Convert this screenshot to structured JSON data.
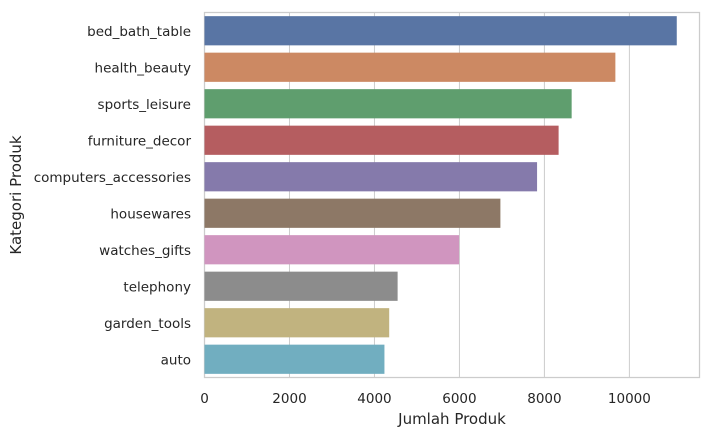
{
  "chart_data": {
    "type": "bar",
    "orientation": "horizontal",
    "title": "",
    "xlabel": "Jumlah Produk",
    "ylabel": "Kategori Produk",
    "xlim": [
      0,
      11650
    ],
    "xticks": [
      0,
      2000,
      4000,
      6000,
      8000,
      10000
    ],
    "tick_labels": [
      "0",
      "2000",
      "4000",
      "6000",
      "8000",
      "10000"
    ],
    "grid": "vertical",
    "categories": [
      "bed_bath_table",
      "health_beauty",
      "sports_leisure",
      "furniture_decor",
      "computers_accessories",
      "housewares",
      "watches_gifts",
      "telephony",
      "garden_tools",
      "auto"
    ],
    "values": [
      11115,
      9670,
      8641,
      8334,
      7827,
      6964,
      5991,
      4545,
      4347,
      4235
    ],
    "colors": [
      "#5975a4",
      "#cc8963",
      "#5f9e6e",
      "#b55d60",
      "#857aab",
      "#8d7866",
      "#d095bf",
      "#8c8c8c",
      "#c1b37f",
      "#71aec0"
    ]
  }
}
